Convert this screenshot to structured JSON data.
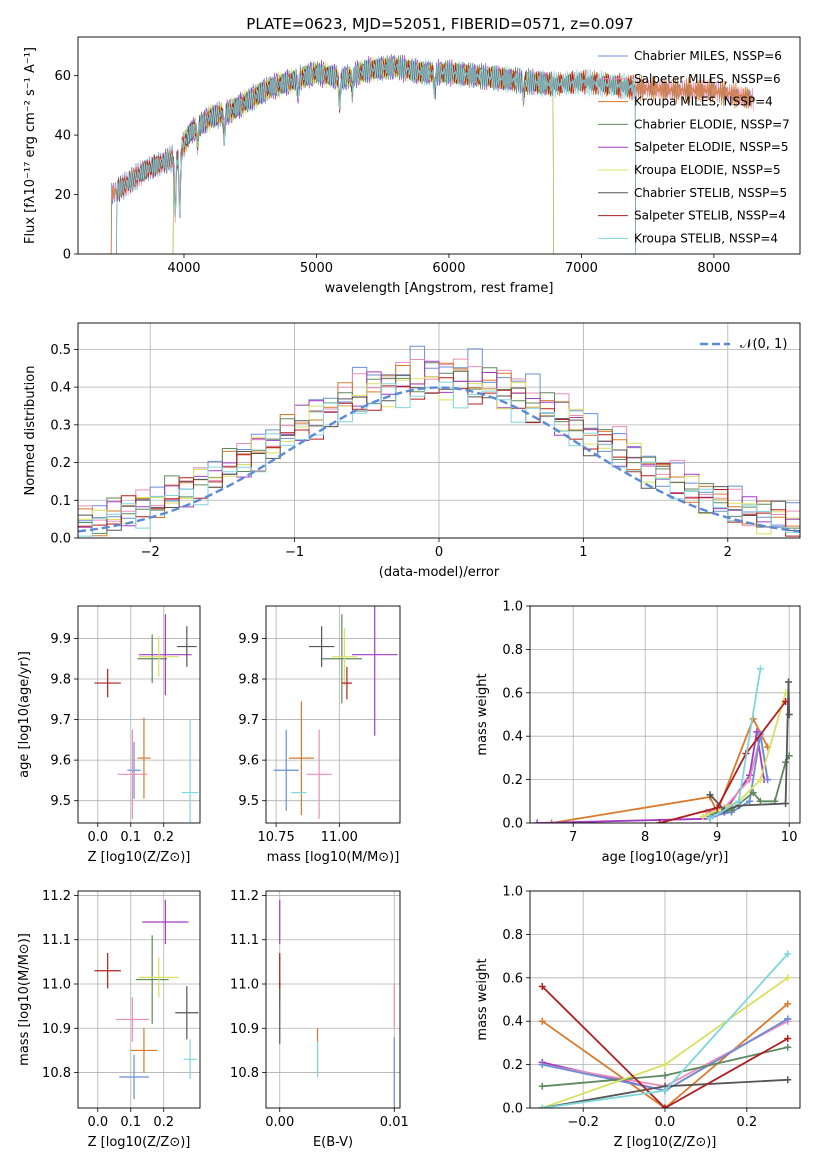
{
  "title": "PLATE=0623, MJD=52051, FIBERID=0571, z=0.097",
  "colors": {
    "Chabrier MILES": "#6b8fd6",
    "Salpeter MILES": "#e98fb8",
    "Kroupa MILES": "#d97a2b",
    "Chabrier ELODIE": "#5f8a5f",
    "Salpeter ELODIE": "#a33cc0",
    "Kroupa ELODIE": "#d8e060",
    "Chabrier STELIB": "#555555",
    "Salpeter STELIB": "#b01f1f",
    "Kroupa STELIB": "#7fd6de"
  },
  "chart_data": [
    {
      "id": "spectrum",
      "type": "line",
      "xlabel": "wavelength [Angstrom, rest frame]",
      "ylabel": "Flux [fλ10⁻¹⁷ erg cm⁻² s⁻¹ A⁻¹]",
      "xlim": [
        3200,
        8650
      ],
      "ylim": [
        0,
        73
      ],
      "xticks": [
        4000,
        5000,
        6000,
        7000,
        8000
      ],
      "yticks": [
        0,
        20,
        40,
        60
      ],
      "legend": "top-right",
      "series": [
        {
          "name": "Chabrier MILES, NSSP=6",
          "color": "#6b8fd6"
        },
        {
          "name": "Salpeter MILES, NSSP=6",
          "color": "#e98fb8"
        },
        {
          "name": "Kroupa MILES, NSSP=4",
          "color": "#d97a2b"
        },
        {
          "name": "Chabrier ELODIE, NSSP=7",
          "color": "#5f8a5f"
        },
        {
          "name": "Salpeter ELODIE, NSSP=5",
          "color": "#a33cc0"
        },
        {
          "name": "Kroupa ELODIE, NSSP=5",
          "color": "#d8e060"
        },
        {
          "name": "Chabrier STELIB, NSSP=5",
          "color": "#555555"
        },
        {
          "name": "Salpeter STELIB, NSSP=4",
          "color": "#b01f1f"
        },
        {
          "name": "Kroupa STELIB, NSSP=4",
          "color": "#7fd6de"
        }
      ],
      "continuum": [
        [
          3450,
          20
        ],
        [
          3550,
          23
        ],
        [
          3700,
          28
        ],
        [
          3850,
          31
        ],
        [
          3950,
          33
        ],
        [
          4050,
          41
        ],
        [
          4200,
          46
        ],
        [
          4350,
          48
        ],
        [
          4500,
          52
        ],
        [
          4650,
          56
        ],
        [
          4800,
          58
        ],
        [
          5000,
          61
        ],
        [
          5100,
          60
        ],
        [
          5200,
          59
        ],
        [
          5400,
          62
        ],
        [
          5600,
          63
        ],
        [
          5800,
          61
        ],
        [
          6000,
          61
        ],
        [
          6200,
          60
        ],
        [
          6400,
          59
        ],
        [
          6600,
          58
        ],
        [
          6800,
          57
        ],
        [
          7000,
          58
        ],
        [
          7200,
          57
        ],
        [
          7400,
          56
        ],
        [
          7700,
          55
        ],
        [
          8000,
          55
        ],
        [
          8200,
          53
        ],
        [
          8300,
          52
        ]
      ],
      "absorption": [
        [
          3934,
          18
        ],
        [
          3968,
          20
        ],
        [
          4102,
          6
        ],
        [
          4304,
          8
        ],
        [
          4861,
          5
        ],
        [
          5175,
          9
        ],
        [
          5270,
          5
        ],
        [
          5893,
          7
        ],
        [
          6563,
          5
        ],
        [
          8500,
          4
        ],
        [
          8542,
          5
        ]
      ],
      "dropouts": [
        {
          "series": "Kroupa ELODIE, NSSP=5",
          "ranges": [
            [
              3200,
              3920
            ],
            [
              6790,
              8650
            ]
          ]
        },
        {
          "series": "Salpeter ELODIE, NSSP=5",
          "ranges": [
            [
              3200,
              3920
            ],
            [
              6790,
              8650
            ]
          ]
        },
        {
          "series": "Chabrier ELODIE, NSSP=7",
          "ranges": [
            [
              3200,
              3920
            ],
            [
              6790,
              8650
            ]
          ]
        },
        {
          "series": "Chabrier STELIB, NSSP=5",
          "ranges": [
            [
              3200,
              3490
            ],
            [
              7410,
              8650
            ]
          ]
        },
        {
          "series": "Salpeter STELIB, NSSP=4",
          "ranges": [
            [
              3200,
              3490
            ],
            [
              7410,
              8650
            ]
          ]
        },
        {
          "series": "Kroupa STELIB, NSSP=4",
          "ranges": [
            [
              3200,
              3490
            ],
            [
              7410,
              8650
            ]
          ]
        }
      ]
    },
    {
      "id": "residuals",
      "type": "line",
      "xlabel": "(data-model)/error",
      "ylabel": "Normed distribution",
      "xlim": [
        -2.5,
        2.5
      ],
      "ylim": [
        0,
        0.57
      ],
      "xticks": [
        -2,
        -1,
        0,
        1,
        2
      ],
      "yticks": [
        0.0,
        0.1,
        0.2,
        0.3,
        0.4,
        0.5
      ],
      "legend": "top-right",
      "legend_label": "𝒩(0, 1)",
      "reference_curve": {
        "mean": 0,
        "sigma": 1,
        "color": "#5b8ad6"
      },
      "bin_width": 0.1,
      "bin_start": -2.5,
      "peak_values": [
        0.53,
        0.52,
        0.5,
        0.49,
        0.48,
        0.47,
        0.46,
        0.45,
        0.44
      ]
    },
    {
      "id": "z-age",
      "type": "scatter",
      "xlabel": "Z [log10(Z/Z⊙)]",
      "ylabel": "age  [log10(age/yr)]",
      "xlim": [
        -0.06,
        0.31
      ],
      "ylim": [
        9.445,
        9.98
      ],
      "xticks": [
        0.0,
        0.1,
        0.2
      ],
      "yticks": [
        9.5,
        9.6,
        9.7,
        9.8,
        9.9
      ],
      "points": [
        {
          "color": "#6b8fd6",
          "x": 0.11,
          "y": 9.575,
          "dx": 0.02,
          "dy": 0.07
        },
        {
          "color": "#e98fb8",
          "x": 0.105,
          "y": 9.565,
          "dx": 0.045,
          "dy": 0.11
        },
        {
          "color": "#d97a2b",
          "x": 0.14,
          "y": 9.605,
          "dx": 0.02,
          "dy": 0.1
        },
        {
          "color": "#5f8a5f",
          "x": 0.165,
          "y": 9.85,
          "dx": 0.045,
          "dy": 0.06
        },
        {
          "color": "#a33cc0",
          "x": 0.205,
          "y": 9.86,
          "dx": 0.08,
          "dy": 0.1
        },
        {
          "color": "#d8e060",
          "x": 0.185,
          "y": 9.855,
          "dx": 0.06,
          "dy": 0.05
        },
        {
          "color": "#555555",
          "x": 0.27,
          "y": 9.88,
          "dx": 0.03,
          "dy": 0.05
        },
        {
          "color": "#b01f1f",
          "x": 0.03,
          "y": 9.79,
          "dx": 0.04,
          "dy": 0.035
        },
        {
          "color": "#7fd6de",
          "x": 0.28,
          "y": 9.52,
          "dx": 0.025,
          "dy": 0.18
        }
      ]
    },
    {
      "id": "mass-age",
      "type": "scatter",
      "xlabel": "mass [log10(M/M⊙)]",
      "ylabel": "",
      "xlim": [
        10.71,
        11.24
      ],
      "ylim": [
        9.445,
        9.98
      ],
      "xticks": [
        10.75,
        11.0
      ],
      "yticks": [
        9.5,
        9.6,
        9.7,
        9.8,
        9.9
      ],
      "points": [
        {
          "color": "#6b8fd6",
          "x": 10.79,
          "y": 9.575,
          "dx": 0.05,
          "dy": 0.1
        },
        {
          "color": "#e98fb8",
          "x": 10.92,
          "y": 9.565,
          "dx": 0.05,
          "dy": 0.11
        },
        {
          "color": "#d97a2b",
          "x": 10.85,
          "y": 9.605,
          "dx": 0.05,
          "dy": 0.14
        },
        {
          "color": "#5f8a5f",
          "x": 11.01,
          "y": 9.85,
          "dx": 0.08,
          "dy": 0.11
        },
        {
          "color": "#a33cc0",
          "x": 11.14,
          "y": 9.86,
          "dx": 0.09,
          "dy": 0.2
        },
        {
          "color": "#d8e060",
          "x": 11.02,
          "y": 9.855,
          "dx": 0.05,
          "dy": 0.07
        },
        {
          "color": "#555555",
          "x": 10.93,
          "y": 9.88,
          "dx": 0.05,
          "dy": 0.05
        },
        {
          "color": "#b01f1f",
          "x": 11.03,
          "y": 9.79,
          "dx": 0.02,
          "dy": 0.04
        },
        {
          "color": "#7fd6de",
          "x": 10.84,
          "y": 9.52,
          "dx": 0.03,
          "dy": 0.0
        }
      ]
    },
    {
      "id": "age-weight",
      "type": "line",
      "xlabel": "age  [log10(age/yr)]",
      "ylabel": "mass weight",
      "xlim": [
        6.4,
        10.15
      ],
      "ylim": [
        0,
        1.0
      ],
      "xticks": [
        7,
        8,
        9,
        10
      ],
      "yticks": [
        0.0,
        0.2,
        0.4,
        0.6,
        0.8,
        1.0
      ],
      "series": [
        {
          "color": "#d97a2b",
          "points": [
            [
              6.7,
              0
            ],
            [
              8.9,
              0.12
            ],
            [
              9.0,
              0.05
            ],
            [
              9.5,
              0.48
            ],
            [
              9.7,
              0.35
            ]
          ]
        },
        {
          "color": "#a33cc0",
          "points": [
            [
              6.5,
              0
            ],
            [
              8.9,
              0.02
            ],
            [
              9.1,
              0.05
            ],
            [
              9.45,
              0.22
            ],
            [
              9.55,
              0.42
            ],
            [
              9.65,
              0.2
            ]
          ]
        },
        {
          "color": "#e98fb8",
          "points": [
            [
              8.85,
              0.05
            ],
            [
              9.1,
              0.07
            ],
            [
              9.45,
              0.2
            ],
            [
              9.6,
              0.4
            ],
            [
              9.7,
              0.2
            ]
          ]
        },
        {
          "color": "#6b8fd6",
          "points": [
            [
              8.9,
              0.03
            ],
            [
              9.2,
              0.05
            ],
            [
              9.45,
              0.1
            ],
            [
              9.6,
              0.41
            ],
            [
              9.7,
              0.2
            ]
          ]
        },
        {
          "color": "#5f8a5f",
          "points": [
            [
              8.9,
              0.04
            ],
            [
              9.2,
              0.06
            ],
            [
              9.5,
              0.14
            ],
            [
              9.6,
              0.1
            ],
            [
              9.8,
              0.1
            ],
            [
              9.95,
              0.28
            ],
            [
              10.0,
              0.31
            ]
          ]
        },
        {
          "color": "#d8e060",
          "points": [
            [
              8.8,
              0.03
            ],
            [
              9.3,
              0.1
            ],
            [
              9.6,
              0.2
            ],
            [
              9.95,
              0.6
            ]
          ]
        },
        {
          "color": "#555555",
          "points": [
            [
              8.9,
              0.13
            ],
            [
              9.1,
              0.06
            ],
            [
              9.3,
              0.08
            ],
            [
              9.95,
              0.09
            ],
            [
              9.99,
              0.65
            ],
            [
              10.0,
              0.5
            ]
          ]
        },
        {
          "color": "#b01f1f",
          "points": [
            [
              8.2,
              0
            ],
            [
              9.0,
              0.07
            ],
            [
              9.4,
              0.32
            ],
            [
              9.95,
              0.56
            ]
          ]
        },
        {
          "color": "#7fd6de",
          "points": [
            [
              8.9,
              0.02
            ],
            [
              9.3,
              0.1
            ],
            [
              9.6,
              0.71
            ]
          ]
        }
      ]
    },
    {
      "id": "z-mass",
      "type": "scatter",
      "xlabel": "Z [log10(Z/Z⊙)]",
      "ylabel": "mass [log10(M/M⊙)]",
      "xlim": [
        -0.06,
        0.31
      ],
      "ylim": [
        10.72,
        11.21
      ],
      "xticks": [
        0.0,
        0.1,
        0.2
      ],
      "yticks": [
        10.8,
        10.9,
        11.0,
        11.1,
        11.2
      ],
      "points": [
        {
          "color": "#6b8fd6",
          "x": 0.11,
          "y": 10.79,
          "dx": 0.045,
          "dy": 0.05
        },
        {
          "color": "#e98fb8",
          "x": 0.105,
          "y": 10.92,
          "dx": 0.05,
          "dy": 0.05
        },
        {
          "color": "#d97a2b",
          "x": 0.14,
          "y": 10.85,
          "dx": 0.04,
          "dy": 0.05
        },
        {
          "color": "#5f8a5f",
          "x": 0.165,
          "y": 11.01,
          "dx": 0.05,
          "dy": 0.1
        },
        {
          "color": "#a33cc0",
          "x": 0.205,
          "y": 11.14,
          "dx": 0.07,
          "dy": 0.05
        },
        {
          "color": "#d8e060",
          "x": 0.185,
          "y": 11.015,
          "dx": 0.06,
          "dy": 0.045
        },
        {
          "color": "#555555",
          "x": 0.27,
          "y": 10.935,
          "dx": 0.035,
          "dy": 0.06
        },
        {
          "color": "#b01f1f",
          "x": 0.03,
          "y": 11.03,
          "dx": 0.04,
          "dy": 0.04
        },
        {
          "color": "#7fd6de",
          "x": 0.28,
          "y": 10.83,
          "dx": 0.02,
          "dy": 0.045
        }
      ]
    },
    {
      "id": "ebv-mass",
      "type": "scatter",
      "xlabel": "E(B-V)",
      "ylabel": "",
      "xlim": [
        -0.0012,
        0.0105
      ],
      "ylim": [
        10.72,
        11.21
      ],
      "xticks": [
        0.0,
        0.01
      ],
      "tick_labels": [
        "0.00",
        "0.01"
      ],
      "yticks": [
        10.8,
        10.9,
        11.0,
        11.1,
        11.2
      ],
      "points": [
        {
          "color": "#6b8fd6",
          "x": 0.01,
          "y": 10.8,
          "dx": 0,
          "dy": 0.08
        },
        {
          "color": "#e98fb8",
          "x": 0.01,
          "y": 10.95,
          "dx": 0,
          "dy": 0.05
        },
        {
          "color": "#d97a2b",
          "x": 0.0033,
          "y": 10.85,
          "dx": 0,
          "dy": 0.05
        },
        {
          "color": "#5f8a5f",
          "x": 0.0,
          "y": 11.01,
          "dx": 0,
          "dy": 0.05
        },
        {
          "color": "#a33cc0",
          "x": 0.0,
          "y": 11.14,
          "dx": 0,
          "dy": 0.05
        },
        {
          "color": "#d8e060",
          "x": 0.0,
          "y": 11.015,
          "dx": 0,
          "dy": 0.04
        },
        {
          "color": "#555555",
          "x": 0.0,
          "y": 10.935,
          "dx": 0,
          "dy": 0.07
        },
        {
          "color": "#b01f1f",
          "x": 0.0,
          "y": 11.03,
          "dx": 0,
          "dy": 0.04
        },
        {
          "color": "#7fd6de",
          "x": 0.0033,
          "y": 10.83,
          "dx": 0,
          "dy": 0.04
        }
      ]
    },
    {
      "id": "z-weight",
      "type": "line",
      "xlabel": "Z [log10(Z/Z⊙)]",
      "ylabel": "mass weight",
      "xlim": [
        -0.33,
        0.33
      ],
      "ylim": [
        0,
        1.0
      ],
      "xticks": [
        -0.2,
        0.0,
        0.2
      ],
      "yticks": [
        0.0,
        0.2,
        0.4,
        0.6,
        0.8,
        1.0
      ],
      "series": [
        {
          "color": "#d97a2b",
          "points": [
            [
              -0.3,
              0.4
            ],
            [
              0.0,
              0.0
            ],
            [
              0.3,
              0.48
            ]
          ]
        },
        {
          "color": "#a33cc0",
          "points": [
            [
              -0.3,
              0.21
            ],
            [
              0.0,
              0.08
            ],
            [
              0.3,
              0.41
            ]
          ]
        },
        {
          "color": "#e98fb8",
          "points": [
            [
              -0.3,
              0.2
            ],
            [
              0.0,
              0.1
            ],
            [
              0.3,
              0.4
            ]
          ]
        },
        {
          "color": "#6b8fd6",
          "points": [
            [
              -0.3,
              0.2
            ],
            [
              0.0,
              0.08
            ],
            [
              0.3,
              0.41
            ]
          ]
        },
        {
          "color": "#5f8a5f",
          "points": [
            [
              -0.3,
              0.1
            ],
            [
              0.0,
              0.15
            ],
            [
              0.3,
              0.28
            ]
          ]
        },
        {
          "color": "#d8e060",
          "points": [
            [
              -0.3,
              0.0
            ],
            [
              0.0,
              0.2
            ],
            [
              0.3,
              0.6
            ]
          ]
        },
        {
          "color": "#555555",
          "points": [
            [
              -0.3,
              0.0
            ],
            [
              0.0,
              0.1
            ],
            [
              0.3,
              0.13
            ]
          ]
        },
        {
          "color": "#b01f1f",
          "points": [
            [
              -0.3,
              0.56
            ],
            [
              0.0,
              0.0
            ],
            [
              0.3,
              0.32
            ]
          ]
        },
        {
          "color": "#7fd6de",
          "points": [
            [
              -0.3,
              0.0
            ],
            [
              0.0,
              0.08
            ],
            [
              0.3,
              0.71
            ]
          ]
        }
      ]
    }
  ]
}
